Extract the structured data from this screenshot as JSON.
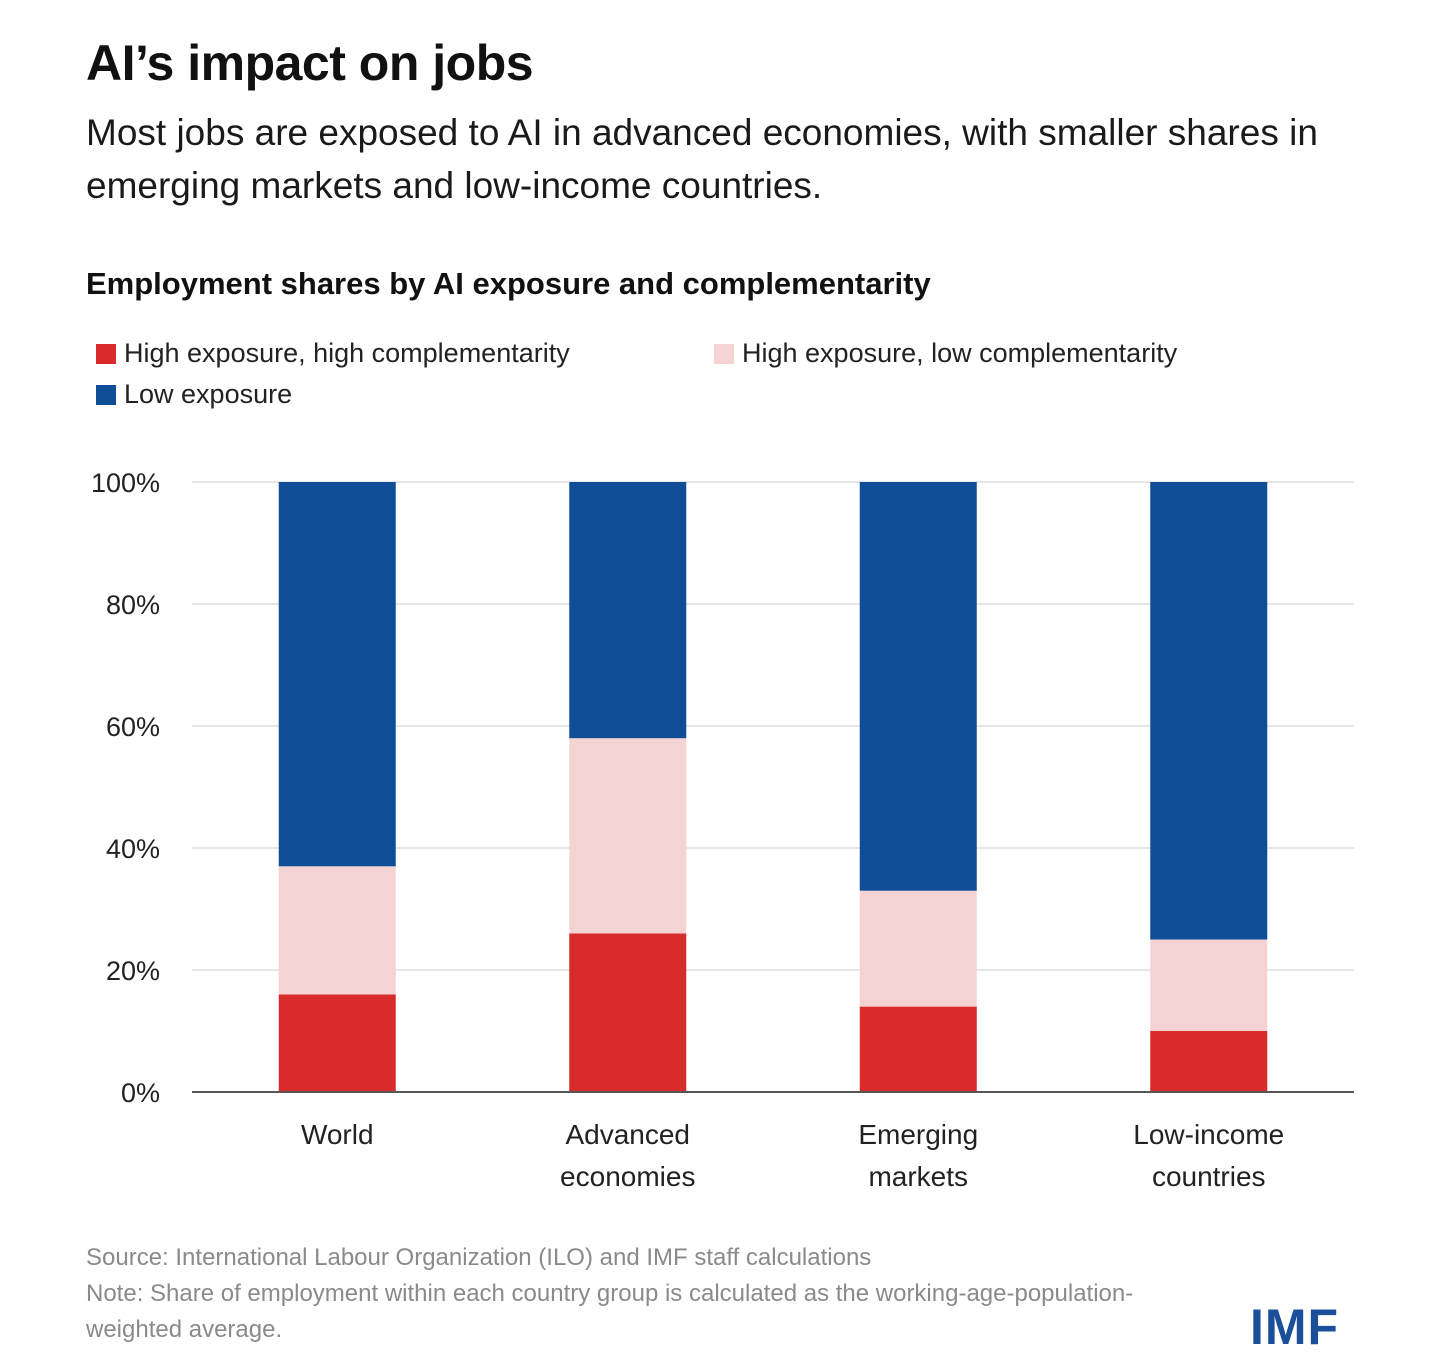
{
  "title": "AI’s impact on jobs",
  "subtitle": "Most jobs are exposed to AI in advanced economies, with smaller shares in emerging markets and low-income countries.",
  "source": "Source: International Labour Organization (ILO) and IMF staff calculations",
  "note": "Note: Share of employment within each country group is calculated as the working-age-population-weighted average.",
  "logo": "IMF",
  "chart_data": {
    "type": "bar",
    "stacked": true,
    "title": "Employment shares by AI exposure and complementarity",
    "xlabel": "",
    "ylabel": "",
    "ylim": [
      0,
      100
    ],
    "yticks": [
      "0%",
      "20%",
      "40%",
      "60%",
      "80%",
      "100%"
    ],
    "grid": true,
    "legend_position": "top-left",
    "categories": [
      "World",
      "Advanced economies",
      "Emerging markets",
      "Low-income countries"
    ],
    "category_lines": [
      [
        "World"
      ],
      [
        "Advanced",
        "economies"
      ],
      [
        "Emerging",
        "markets"
      ],
      [
        "Low-income",
        "countries"
      ]
    ],
    "series": [
      {
        "name": "High exposure, high complementarity",
        "color": "#d92b2b",
        "values": [
          16,
          26,
          14,
          10
        ]
      },
      {
        "name": "High exposure, low complementarity",
        "color": "#f6d3d3",
        "values": [
          21,
          32,
          19,
          15
        ]
      },
      {
        "name": "Low exposure",
        "color": "#0f4e97",
        "values": [
          63,
          42,
          67,
          75
        ]
      }
    ]
  }
}
